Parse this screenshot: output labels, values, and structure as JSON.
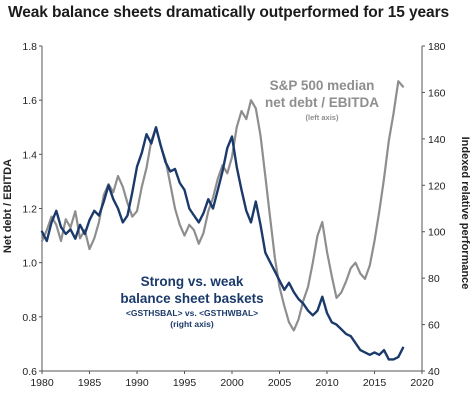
{
  "chart_data": {
    "type": "line",
    "title": "Weak balance sheets dramatically outperformed for 15 years",
    "x_ticks": [
      "1980",
      "1985",
      "1990",
      "1995",
      "2000",
      "2005",
      "2010",
      "2015",
      "2020"
    ],
    "xlim": [
      1980,
      2020
    ],
    "left_axis": {
      "label": "Net debt / EBITDA",
      "ticks": [
        "0.6",
        "0.8",
        "1.0",
        "1.2",
        "1.4",
        "1.6",
        "1.8"
      ],
      "ylim": [
        0.6,
        1.8
      ]
    },
    "right_axis": {
      "label": "Indexed relative performance",
      "ticks": [
        "40",
        "60",
        "80",
        "100",
        "120",
        "140",
        "160",
        "180"
      ],
      "ylim": [
        40,
        180
      ]
    },
    "grid": false,
    "series": [
      {
        "name": "S&P 500 median net debt / EBITDA",
        "axis": "left",
        "color": "#8e8e8e",
        "annotation": [
          "S&P 500  median",
          "net debt / EBITDA",
          "(left axis)"
        ],
        "points": [
          [
            1980.0,
            1.08
          ],
          [
            1980.5,
            1.12
          ],
          [
            1981.0,
            1.17
          ],
          [
            1981.5,
            1.14
          ],
          [
            1982.0,
            1.08
          ],
          [
            1982.5,
            1.16
          ],
          [
            1983.0,
            1.13
          ],
          [
            1983.5,
            1.19
          ],
          [
            1984.0,
            1.09
          ],
          [
            1984.5,
            1.12
          ],
          [
            1985.0,
            1.05
          ],
          [
            1985.5,
            1.09
          ],
          [
            1986.0,
            1.15
          ],
          [
            1986.5,
            1.25
          ],
          [
            1987.0,
            1.29
          ],
          [
            1987.5,
            1.26
          ],
          [
            1988.0,
            1.32
          ],
          [
            1988.5,
            1.28
          ],
          [
            1989.0,
            1.22
          ],
          [
            1989.5,
            1.17
          ],
          [
            1990.0,
            1.19
          ],
          [
            1990.5,
            1.28
          ],
          [
            1991.0,
            1.35
          ],
          [
            1991.5,
            1.45
          ],
          [
            1992.0,
            1.5
          ],
          [
            1992.5,
            1.43
          ],
          [
            1993.0,
            1.38
          ],
          [
            1993.5,
            1.29
          ],
          [
            1994.0,
            1.2
          ],
          [
            1994.5,
            1.14
          ],
          [
            1995.0,
            1.1
          ],
          [
            1995.5,
            1.14
          ],
          [
            1996.0,
            1.12
          ],
          [
            1996.5,
            1.07
          ],
          [
            1997.0,
            1.11
          ],
          [
            1997.5,
            1.19
          ],
          [
            1998.0,
            1.24
          ],
          [
            1998.5,
            1.31
          ],
          [
            1999.0,
            1.36
          ],
          [
            1999.5,
            1.33
          ],
          [
            2000.0,
            1.39
          ],
          [
            2000.5,
            1.5
          ],
          [
            2001.0,
            1.56
          ],
          [
            2001.5,
            1.53
          ],
          [
            2002.0,
            1.6
          ],
          [
            2002.5,
            1.57
          ],
          [
            2003.0,
            1.47
          ],
          [
            2003.5,
            1.32
          ],
          [
            2004.0,
            1.17
          ],
          [
            2004.5,
            1.02
          ],
          [
            2005.0,
            0.91
          ],
          [
            2005.5,
            0.84
          ],
          [
            2006.0,
            0.78
          ],
          [
            2006.5,
            0.75
          ],
          [
            2007.0,
            0.79
          ],
          [
            2007.5,
            0.86
          ],
          [
            2008.0,
            0.91
          ],
          [
            2008.5,
            1.0
          ],
          [
            2009.0,
            1.1
          ],
          [
            2009.5,
            1.15
          ],
          [
            2010.0,
            1.04
          ],
          [
            2010.5,
            0.95
          ],
          [
            2011.0,
            0.87
          ],
          [
            2011.5,
            0.89
          ],
          [
            2012.0,
            0.93
          ],
          [
            2012.5,
            0.98
          ],
          [
            2013.0,
            1.0
          ],
          [
            2013.5,
            0.96
          ],
          [
            2014.0,
            0.94
          ],
          [
            2014.5,
            0.99
          ],
          [
            2015.0,
            1.08
          ],
          [
            2015.5,
            1.19
          ],
          [
            2016.0,
            1.31
          ],
          [
            2016.5,
            1.45
          ],
          [
            2017.0,
            1.55
          ],
          [
            2017.5,
            1.67
          ],
          [
            2018.0,
            1.65
          ]
        ]
      },
      {
        "name": "Strong vs. weak balance sheet baskets <GSTHSBAL> vs. <GSTHWBAL>",
        "axis": "right",
        "color": "#1b3a6b",
        "annotation": [
          "Strong vs. weak",
          "balance sheet baskets",
          "<GSTHSBAL> vs. <GSTHWBAL>",
          "(right axis)"
        ],
        "points": [
          [
            1980.0,
            100
          ],
          [
            1980.5,
            96
          ],
          [
            1981.0,
            104
          ],
          [
            1981.5,
            109
          ],
          [
            1982.0,
            102
          ],
          [
            1982.5,
            99
          ],
          [
            1983.0,
            101
          ],
          [
            1983.5,
            97
          ],
          [
            1984.0,
            103
          ],
          [
            1984.5,
            99
          ],
          [
            1985.0,
            105
          ],
          [
            1985.5,
            109
          ],
          [
            1986.0,
            107
          ],
          [
            1986.5,
            113
          ],
          [
            1987.0,
            120
          ],
          [
            1987.5,
            114
          ],
          [
            1988.0,
            110
          ],
          [
            1988.5,
            104
          ],
          [
            1989.0,
            107
          ],
          [
            1989.5,
            117
          ],
          [
            1990.0,
            128
          ],
          [
            1990.5,
            134
          ],
          [
            1991.0,
            142
          ],
          [
            1991.5,
            138
          ],
          [
            1992.0,
            145
          ],
          [
            1992.5,
            137
          ],
          [
            1993.0,
            130
          ],
          [
            1993.5,
            126
          ],
          [
            1994.0,
            127
          ],
          [
            1994.5,
            121
          ],
          [
            1995.0,
            118
          ],
          [
            1995.5,
            110
          ],
          [
            1996.0,
            107
          ],
          [
            1996.5,
            104
          ],
          [
            1997.0,
            108
          ],
          [
            1997.5,
            114
          ],
          [
            1998.0,
            110
          ],
          [
            1998.5,
            118
          ],
          [
            1999.0,
            126
          ],
          [
            1999.5,
            136
          ],
          [
            2000.0,
            141
          ],
          [
            2000.5,
            128
          ],
          [
            2001.0,
            118
          ],
          [
            2001.5,
            109
          ],
          [
            2002.0,
            104
          ],
          [
            2002.5,
            113
          ],
          [
            2003.0,
            103
          ],
          [
            2003.5,
            91
          ],
          [
            2004.0,
            87
          ],
          [
            2004.5,
            83
          ],
          [
            2005.0,
            79
          ],
          [
            2005.5,
            75
          ],
          [
            2006.0,
            78
          ],
          [
            2006.5,
            74
          ],
          [
            2007.0,
            71
          ],
          [
            2007.5,
            69
          ],
          [
            2008.0,
            66
          ],
          [
            2008.5,
            64
          ],
          [
            2009.0,
            66
          ],
          [
            2009.5,
            72
          ],
          [
            2010.0,
            65
          ],
          [
            2010.5,
            61
          ],
          [
            2011.0,
            60
          ],
          [
            2011.5,
            58
          ],
          [
            2012.0,
            56
          ],
          [
            2012.5,
            55
          ],
          [
            2013.0,
            52
          ],
          [
            2013.5,
            49
          ],
          [
            2014.0,
            48
          ],
          [
            2014.5,
            47
          ],
          [
            2015.0,
            48
          ],
          [
            2015.5,
            47
          ],
          [
            2016.0,
            49
          ],
          [
            2016.5,
            45
          ],
          [
            2017.0,
            45
          ],
          [
            2017.5,
            46
          ],
          [
            2018.0,
            50
          ]
        ]
      }
    ]
  }
}
